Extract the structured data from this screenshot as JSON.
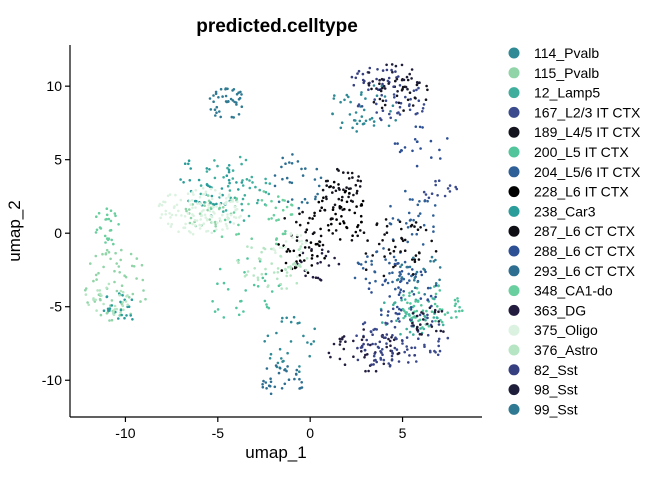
{
  "chart_data": {
    "type": "scatter",
    "title": "predicted.celltype",
    "xlabel": "umap_1",
    "ylabel": "umap_2",
    "xlim": [
      -13,
      9.3
    ],
    "ylim": [
      -12.5,
      12.8
    ],
    "xticks": [
      {
        "value": -10,
        "label": "-10"
      },
      {
        "value": -5,
        "label": "-5"
      },
      {
        "value": 0,
        "label": "0"
      },
      {
        "value": 5,
        "label": "5"
      }
    ],
    "yticks": [
      {
        "value": 10,
        "label": "10"
      },
      {
        "value": 5,
        "label": "5"
      },
      {
        "value": 0,
        "label": "0"
      },
      {
        "value": -5,
        "label": "-5"
      },
      {
        "value": -10,
        "label": "-10"
      }
    ],
    "grid": false,
    "legend_position": "right",
    "series": [
      {
        "name": "114_Pvalb",
        "color": "#2f8a96",
        "regions": [
          {
            "cx": 3.0,
            "cy": 8.5,
            "rx": 2.0,
            "ry": 1.8,
            "n": 40
          },
          {
            "cx": -1.0,
            "cy": -7.5,
            "rx": 1.5,
            "ry": 2.0,
            "n": 30
          }
        ]
      },
      {
        "name": "115_Pvalb",
        "color": "#90d4a8",
        "regions": [
          {
            "cx": -10.5,
            "cy": -3.5,
            "rx": 1.8,
            "ry": 2.5,
            "n": 60
          },
          {
            "cx": -5.5,
            "cy": 1.5,
            "rx": 1.5,
            "ry": 1.2,
            "n": 30
          }
        ]
      },
      {
        "name": "12_Lamp5",
        "color": "#3fae9d",
        "regions": [
          {
            "cx": -4.0,
            "cy": 3.0,
            "rx": 2.0,
            "ry": 2.5,
            "n": 50
          },
          {
            "cx": 5.5,
            "cy": -5.5,
            "rx": 2.0,
            "ry": 1.5,
            "n": 40
          }
        ]
      },
      {
        "name": "167_L2/3 IT CTX",
        "color": "#3a4a8c",
        "regions": [
          {
            "cx": 5.0,
            "cy": -7.0,
            "rx": 2.5,
            "ry": 2.0,
            "n": 70
          },
          {
            "cx": 4.5,
            "cy": 9.0,
            "rx": 2.0,
            "ry": 1.5,
            "n": 40
          },
          {
            "cx": 7.0,
            "cy": 2.8,
            "rx": 1.0,
            "ry": 1.0,
            "n": 15
          }
        ]
      },
      {
        "name": "189_L4/5 IT CTX",
        "color": "#14141e",
        "regions": [
          {
            "cx": 1.8,
            "cy": 3.0,
            "rx": 1.2,
            "ry": 1.5,
            "n": 40
          },
          {
            "cx": 4.8,
            "cy": 9.5,
            "rx": 1.8,
            "ry": 1.2,
            "n": 30
          }
        ]
      },
      {
        "name": "200_L5 IT CTX",
        "color": "#52c59d",
        "regions": [
          {
            "cx": 6.5,
            "cy": -5.0,
            "rx": 1.8,
            "ry": 1.5,
            "n": 60
          },
          {
            "cx": -3.5,
            "cy": -4.0,
            "rx": 2.0,
            "ry": 2.5,
            "n": 30
          }
        ]
      },
      {
        "name": "204_L5/6 IT CTX",
        "color": "#2e5f96",
        "regions": [
          {
            "cx": 4.0,
            "cy": -2.5,
            "rx": 1.8,
            "ry": 1.5,
            "n": 40
          },
          {
            "cx": 5.5,
            "cy": 1.0,
            "rx": 1.5,
            "ry": 2.0,
            "n": 30
          }
        ]
      },
      {
        "name": "228_L6 IT CTX",
        "color": "#000000",
        "regions": [
          {
            "cx": 1.5,
            "cy": 1.5,
            "rx": 1.5,
            "ry": 2.0,
            "n": 50
          },
          {
            "cx": -0.5,
            "cy": -1.5,
            "rx": 1.5,
            "ry": 1.5,
            "n": 30
          }
        ]
      },
      {
        "name": "238_Car3",
        "color": "#2a9d9a",
        "regions": [
          {
            "cx": -5.5,
            "cy": 3.5,
            "rx": 2.0,
            "ry": 1.8,
            "n": 40
          },
          {
            "cx": -10.0,
            "cy": -5.0,
            "rx": 1.5,
            "ry": 1.0,
            "n": 25
          }
        ]
      },
      {
        "name": "287_L6 CT CTX",
        "color": "#0e0e14",
        "regions": [
          {
            "cx": 4.5,
            "cy": -1.0,
            "rx": 2.5,
            "ry": 2.0,
            "n": 50
          },
          {
            "cx": 0.0,
            "cy": 0.5,
            "rx": 1.5,
            "ry": 1.5,
            "n": 25
          }
        ]
      },
      {
        "name": "288_L6 CT CTX",
        "color": "#2d4f94",
        "regions": [
          {
            "cx": 5.0,
            "cy": -4.0,
            "rx": 2.0,
            "ry": 2.0,
            "n": 40
          },
          {
            "cx": 6.0,
            "cy": 6.0,
            "rx": 1.5,
            "ry": 1.5,
            "n": 20
          }
        ]
      },
      {
        "name": "293_L6 CT CTX",
        "color": "#2e6e91",
        "regions": [
          {
            "cx": -1.5,
            "cy": -10.0,
            "rx": 1.2,
            "ry": 1.2,
            "n": 30
          },
          {
            "cx": -0.8,
            "cy": 3.5,
            "rx": 1.5,
            "ry": 2.0,
            "n": 30
          }
        ]
      },
      {
        "name": "348_CA1-do",
        "color": "#69cf9e",
        "regions": [
          {
            "cx": -3.0,
            "cy": 1.0,
            "rx": 2.5,
            "ry": 2.0,
            "n": 40
          },
          {
            "cx": -11.0,
            "cy": 0.5,
            "rx": 0.8,
            "ry": 1.5,
            "n": 25
          }
        ]
      },
      {
        "name": "363_DG",
        "color": "#231c3e",
        "regions": [
          {
            "cx": 3.0,
            "cy": -8.0,
            "rx": 2.0,
            "ry": 1.5,
            "n": 40
          },
          {
            "cx": 0.5,
            "cy": -2.0,
            "rx": 1.2,
            "ry": 1.2,
            "n": 20
          }
        ]
      },
      {
        "name": "375_Oligo",
        "color": "#dcf2e1",
        "regions": [
          {
            "cx": -6.0,
            "cy": 1.5,
            "rx": 2.3,
            "ry": 1.6,
            "n": 120
          },
          {
            "cx": -1.0,
            "cy": -1.0,
            "rx": 1.0,
            "ry": 1.0,
            "n": 20
          }
        ]
      },
      {
        "name": "376_Astro",
        "color": "#b5e5c3",
        "regions": [
          {
            "cx": -2.0,
            "cy": -2.0,
            "rx": 2.0,
            "ry": 2.0,
            "n": 50
          },
          {
            "cx": -11.0,
            "cy": -4.5,
            "rx": 1.2,
            "ry": 1.2,
            "n": 30
          }
        ]
      },
      {
        "name": "82_Sst",
        "color": "#363f80",
        "regions": [
          {
            "cx": 4.0,
            "cy": -8.0,
            "rx": 1.8,
            "ry": 1.2,
            "n": 40
          },
          {
            "cx": 3.5,
            "cy": 10.5,
            "rx": 1.5,
            "ry": 0.8,
            "n": 25
          }
        ]
      },
      {
        "name": "98_Sst",
        "color": "#1e1e3a",
        "regions": [
          {
            "cx": 4.5,
            "cy": 10.5,
            "rx": 1.5,
            "ry": 1.0,
            "n": 30
          },
          {
            "cx": 6.5,
            "cy": -6.0,
            "rx": 1.2,
            "ry": 1.0,
            "n": 25
          }
        ]
      },
      {
        "name": "99_Sst",
        "color": "#2f7a92",
        "regions": [
          {
            "cx": -4.5,
            "cy": 9.0,
            "rx": 1.0,
            "ry": 1.3,
            "n": 40
          },
          {
            "cx": 6.0,
            "cy": -3.0,
            "rx": 1.5,
            "ry": 1.5,
            "n": 25
          }
        ]
      }
    ]
  }
}
